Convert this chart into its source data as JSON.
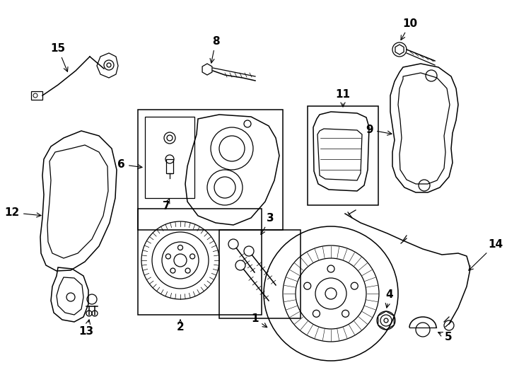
{
  "background_color": "#ffffff",
  "line_color": "#000000",
  "label_fontsize": 11,
  "figsize": [
    7.34,
    5.4
  ],
  "dpi": 100
}
